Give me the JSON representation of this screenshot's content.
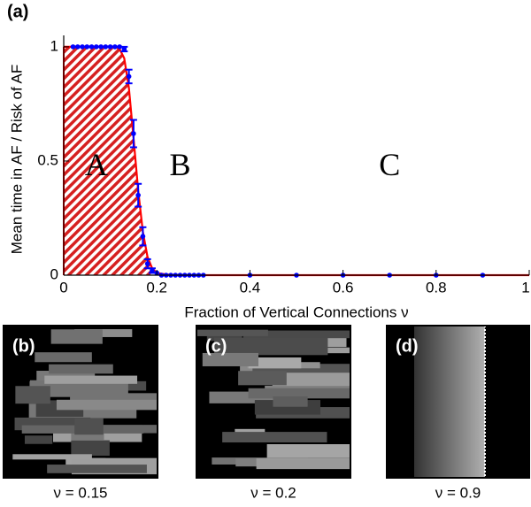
{
  "chart_data": {
    "type": "errorbar",
    "title": "(a)",
    "xlabel": "Fraction of Vertical Connections ν",
    "ylabel": "Mean time in AF / Risk of AF",
    "xlim": [
      0,
      1
    ],
    "ylim": [
      0,
      1.05
    ],
    "xticks": [
      0,
      0.2,
      0.4,
      0.6,
      0.8,
      1
    ],
    "yticks": [
      0,
      0.5,
      1
    ],
    "series": [
      {
        "color": "#0000ff",
        "x": [
          0.02,
          0.03,
          0.04,
          0.05,
          0.06,
          0.07,
          0.08,
          0.09,
          0.1,
          0.11,
          0.12,
          0.13,
          0.14,
          0.15,
          0.16,
          0.17,
          0.18,
          0.19,
          0.2,
          0.21,
          0.22,
          0.23,
          0.24,
          0.25,
          0.26,
          0.27,
          0.28,
          0.29,
          0.3,
          0.4,
          0.5,
          0.6,
          0.7,
          0.8,
          0.9
        ],
        "values": [
          1,
          1,
          1,
          1,
          1,
          1,
          1,
          1,
          1,
          1,
          1,
          0.99,
          0.87,
          0.62,
          0.35,
          0.17,
          0.05,
          0.02,
          0.01,
          0,
          0,
          0,
          0,
          0,
          0,
          0,
          0,
          0,
          0,
          0,
          0,
          0,
          0,
          0,
          0
        ],
        "errors": [
          0,
          0,
          0,
          0,
          0,
          0,
          0,
          0,
          0,
          0,
          0,
          0.01,
          0.03,
          0.06,
          0.05,
          0.04,
          0.02,
          0.01,
          0,
          0,
          0,
          0,
          0,
          0,
          0,
          0,
          0,
          0,
          0,
          0,
          0,
          0,
          0,
          0,
          0
        ]
      },
      {
        "color": "#ff0000",
        "hatch": true,
        "x": [
          0,
          0.11,
          0.12,
          0.13,
          0.14,
          0.15,
          0.16,
          0.17,
          0.18,
          0.19,
          0.2,
          0.22,
          0.25,
          1
        ],
        "values": [
          1,
          1,
          0.99,
          0.95,
          0.82,
          0.6,
          0.37,
          0.19,
          0.08,
          0.03,
          0.01,
          0.003,
          0,
          0
        ]
      }
    ],
    "region_labels": [
      "A",
      "B",
      "C"
    ]
  },
  "panels": [
    {
      "label": "(b)",
      "caption": "ν = 0.15"
    },
    {
      "label": "(c)",
      "caption": "ν = 0.2"
    },
    {
      "label": "(d)",
      "caption": "ν = 0.9"
    }
  ]
}
